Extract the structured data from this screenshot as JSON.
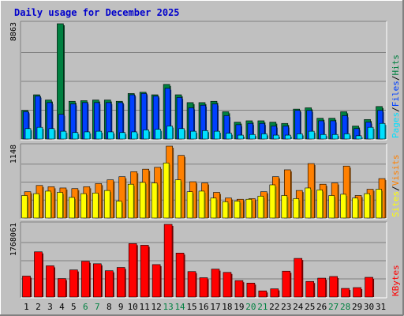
{
  "colors": {
    "background": "#C0C0C0",
    "title": "#0000CC",
    "hits": "#008040",
    "files": "#0040FF",
    "pages": "#00E0FF",
    "visits": "#FF8000",
    "sites": "#FFFF00",
    "kbytes": "#FF0000",
    "weekend_label": "#008040",
    "weekday_label": "#000000"
  },
  "chart_data": {
    "type": "bar",
    "title": "Daily usage for December 2025",
    "categories": [
      "1",
      "2",
      "3",
      "4",
      "5",
      "6",
      "7",
      "8",
      "9",
      "10",
      "11",
      "12",
      "13",
      "14",
      "15",
      "16",
      "17",
      "18",
      "19",
      "20",
      "21",
      "22",
      "23",
      "24",
      "25",
      "26",
      "27",
      "28",
      "29",
      "30",
      "31"
    ],
    "weekend_days": [
      "6",
      "7",
      "13",
      "14",
      "20",
      "21",
      "27",
      "28"
    ],
    "grid": true,
    "panels": [
      {
        "name": "hits-files-pages",
        "ymax_label": "8863",
        "ymax": 8863,
        "legend": [
          "Pages",
          "Files",
          "Hits"
        ],
        "series": [
          {
            "name": "Hits",
            "color_key": "hits",
            "values": [
              2200,
              3400,
              3000,
              8863,
              2900,
              2950,
              3000,
              3000,
              2900,
              3500,
              3600,
              3400,
              4200,
              3400,
              2800,
              2800,
              2900,
              2100,
              1300,
              1400,
              1400,
              1300,
              1200,
              2300,
              2400,
              1600,
              1600,
              2100,
              1000,
              1500,
              2500
            ]
          },
          {
            "name": "Files",
            "color_key": "files",
            "values": [
              2100,
              3300,
              2800,
              1900,
              2700,
              2800,
              2800,
              2800,
              2800,
              3400,
              3500,
              3300,
              3900,
              3200,
              2400,
              2600,
              2700,
              1800,
              1100,
              1200,
              1200,
              1000,
              1000,
              2200,
              2200,
              1400,
              1400,
              1800,
              800,
              1300,
              2200
            ]
          },
          {
            "name": "Pages",
            "color_key": "pages",
            "values": [
              800,
              900,
              800,
              600,
              500,
              550,
              600,
              550,
              500,
              550,
              700,
              750,
              1000,
              800,
              600,
              650,
              600,
              450,
              300,
              350,
              400,
              300,
              300,
              400,
              600,
              350,
              350,
              400,
              250,
              900,
              1200
            ]
          }
        ]
      },
      {
        "name": "visits-sites",
        "ymax_label": "1148",
        "ymax": 1148,
        "legend": [
          "Sites",
          "Visits"
        ],
        "series": [
          {
            "name": "Visits",
            "color_key": "visits",
            "values": [
              420,
              520,
              500,
              480,
              470,
              500,
              550,
              610,
              660,
              740,
              780,
              810,
              1148,
              1000,
              580,
              560,
              410,
              320,
              300,
              310,
              420,
              660,
              770,
              440,
              870,
              540,
              560,
              830,
              360,
              460,
              630
            ]
          },
          {
            "name": "Sites",
            "color_key": "sites",
            "values": [
              360,
              390,
              430,
              410,
              330,
              390,
              400,
              440,
              270,
              540,
              570,
              560,
              880,
              610,
              420,
              430,
              320,
              260,
              270,
              300,
              350,
              530,
              360,
              310,
              480,
              450,
              360,
              380,
              320,
              390,
              460
            ]
          }
        ]
      },
      {
        "name": "kbytes",
        "ymax_label": "1768061",
        "ymax": 1768061,
        "legend": [
          "KBytes"
        ],
        "series": [
          {
            "name": "KBytes",
            "color_key": "kbytes",
            "values": [
              510000,
              1100000,
              760000,
              450000,
              660000,
              870000,
              810000,
              640000,
              720000,
              1300000,
              1260000,
              790000,
              1768061,
              1070000,
              620000,
              470000,
              680000,
              600000,
              400000,
              340000,
              150000,
              200000,
              630000,
              940000,
              380000,
              460000,
              500000,
              210000,
              230000,
              480000,
              0
            ]
          }
        ]
      }
    ]
  }
}
